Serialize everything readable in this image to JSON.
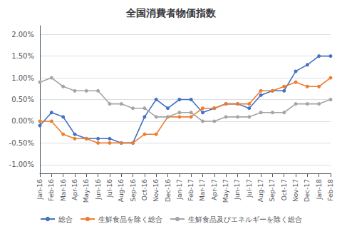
{
  "chart_data": {
    "type": "line",
    "title": "全国消費者物価指数",
    "categories": [
      "Jan-16",
      "Feb-16",
      "Mar-16",
      "Apr-16",
      "May-16",
      "Jun-16",
      "Jul-16",
      "Aug-16",
      "Sep-16",
      "Oct-16",
      "Nov-16",
      "Dec-16",
      "Jan-17",
      "Feb-17",
      "Mar-17",
      "Apr-17",
      "May-17",
      "Jun-17",
      "Jul-17",
      "Aug-17",
      "Sep-17",
      "Oct-17",
      "Nov-17",
      "Dec-17",
      "Jan-18",
      "Feb-18"
    ],
    "series": [
      {
        "name": "総合",
        "color": "#4472C4",
        "values": [
          -0.001,
          0.002,
          0.001,
          -0.003,
          -0.004,
          -0.004,
          -0.004,
          -0.005,
          -0.005,
          0.001,
          0.005,
          0.003,
          0.005,
          0.005,
          0.002,
          0.003,
          0.004,
          0.004,
          0.003,
          0.006,
          0.007,
          0.007,
          0.0115,
          0.013,
          0.015,
          0.015
        ]
      },
      {
        "name": "生鮮食品を除く総合",
        "color": "#ED7D31",
        "values": [
          0.0,
          0.0,
          -0.003,
          -0.004,
          -0.004,
          -0.005,
          -0.005,
          -0.005,
          -0.005,
          -0.003,
          -0.003,
          0.001,
          0.001,
          0.001,
          0.003,
          0.003,
          0.004,
          0.004,
          0.004,
          0.007,
          0.007,
          0.008,
          0.009,
          0.008,
          0.008,
          0.01
        ]
      },
      {
        "name": "生鮮食品及びエネルギーを除く総合",
        "color": "#A5A5A5",
        "values": [
          0.009,
          0.01,
          0.008,
          0.007,
          0.007,
          0.007,
          0.004,
          0.004,
          0.003,
          0.003,
          0.001,
          0.001,
          0.002,
          0.002,
          0.0,
          0.0,
          0.001,
          0.001,
          0.001,
          0.002,
          0.002,
          0.002,
          0.004,
          0.004,
          0.004,
          0.005
        ]
      }
    ],
    "marker": "circle",
    "ylim": [
      -0.012,
      0.022
    ],
    "yticks": [
      {
        "value": -0.01,
        "label": "-1.00%"
      },
      {
        "value": -0.005,
        "label": "-0.50%"
      },
      {
        "value": 0,
        "label": "0.00%"
      },
      {
        "value": 0.005,
        "label": "0.50%"
      },
      {
        "value": 0.01,
        "label": "1.00%"
      },
      {
        "value": 0.015,
        "label": "1.50%"
      },
      {
        "value": 0.02,
        "label": "2.00%"
      }
    ],
    "grid": true,
    "legend": "bottom"
  }
}
